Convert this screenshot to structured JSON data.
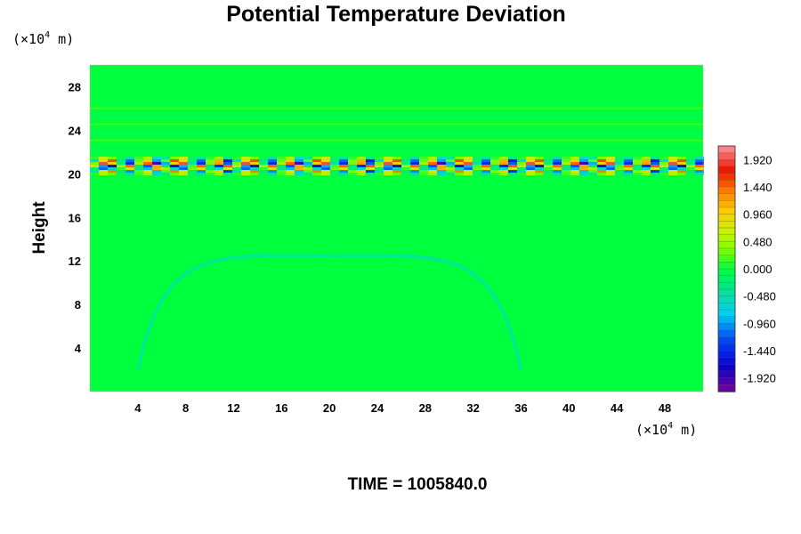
{
  "chart_data": {
    "type": "heatmap",
    "title": "Potential Temperature Deviation",
    "ylabel": "Height",
    "y_unit_prefix": "(×10",
    "y_unit_exp": "4",
    "y_unit_suffix": " m)",
    "x_unit_prefix": "(×10",
    "x_unit_exp": "4",
    "x_unit_suffix": " m)",
    "xlim": [
      0,
      51.2
    ],
    "ylim": [
      0,
      30
    ],
    "x_ticks": [
      "4",
      "8",
      "12",
      "16",
      "20",
      "24",
      "28",
      "32",
      "36",
      "40",
      "44",
      "48"
    ],
    "x_tick_values": [
      4,
      8,
      12,
      16,
      20,
      24,
      28,
      32,
      36,
      40,
      44,
      48
    ],
    "y_ticks": [
      "4",
      "8",
      "12",
      "16",
      "20",
      "24",
      "28"
    ],
    "y_tick_values": [
      4,
      8,
      12,
      16,
      20,
      24,
      28
    ],
    "colorbar": {
      "labels": [
        "1.920",
        "1.440",
        "0.960",
        "0.480",
        "0.000",
        "-0.480",
        "-0.960",
        "-1.440",
        "-1.920"
      ],
      "label_values": [
        1.92,
        1.44,
        0.96,
        0.48,
        0.0,
        -0.48,
        -0.96,
        -1.44,
        -1.92
      ],
      "range": [
        -2.16,
        2.16
      ],
      "levels": 36
    },
    "features": [
      {
        "kind": "background",
        "value": 0.0
      },
      {
        "kind": "band",
        "x_range": [
          0,
          51.2
        ],
        "y_center": 20.8,
        "value_range": [
          -1.92,
          1.92
        ]
      },
      {
        "kind": "arc",
        "x_range": [
          4,
          36
        ],
        "y_top": 12.5,
        "value": -0.5
      }
    ],
    "time_label": "TIME = 1005840.0"
  }
}
